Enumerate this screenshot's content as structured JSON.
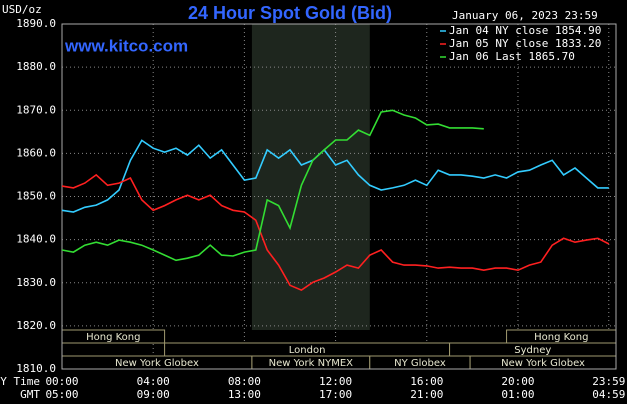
{
  "chart_data": {
    "type": "line",
    "title": "24 Hour Spot Gold (Bid)",
    "subtitle": "www.kitco.com",
    "timestamp": "January 06, 2023 23:59",
    "y_label": "USD/oz",
    "x_label": "NY Time",
    "x2_label": "GMT",
    "xlim": [
      0,
      24.3
    ],
    "ylim": [
      1810,
      1890
    ],
    "yticks": [
      {
        "value": 1810,
        "label": "1810.0"
      },
      {
        "value": 1820,
        "label": "1820.0"
      },
      {
        "value": 1830,
        "label": "1830.0"
      },
      {
        "value": 1840,
        "label": "1840.0"
      },
      {
        "value": 1850,
        "label": "1850.0"
      },
      {
        "value": 1860,
        "label": "1860.0"
      },
      {
        "value": 1870,
        "label": "1870.0"
      },
      {
        "value": 1880,
        "label": "1880.0"
      },
      {
        "value": 1890,
        "label": "1890.0"
      }
    ],
    "xticks": [
      {
        "value": 0,
        "label": "00:00"
      },
      {
        "value": 4,
        "label": "04:00"
      },
      {
        "value": 8,
        "label": "08:00"
      },
      {
        "value": 12,
        "label": "12:00"
      },
      {
        "value": 16,
        "label": "16:00"
      },
      {
        "value": 20,
        "label": "20:00"
      },
      {
        "value": 23.983,
        "label": "23:59"
      }
    ],
    "x2ticks": [
      {
        "value": 0,
        "label": "05:00"
      },
      {
        "value": 4,
        "label": "09:00"
      },
      {
        "value": 8,
        "label": "13:00"
      },
      {
        "value": 12,
        "label": "17:00"
      },
      {
        "value": 16,
        "label": "21:00"
      },
      {
        "value": 20,
        "label": "01:00"
      },
      {
        "value": 23.983,
        "label": "04:59"
      }
    ],
    "grid": true,
    "shaded_range": [
      8.33,
      13.5
    ],
    "sessions": [
      [
        {
          "label": "Hong Kong",
          "start": 0,
          "end": 4.5
        },
        {
          "label": "Hong Kong",
          "start": 19.5,
          "end": 24.3
        }
      ],
      [
        {
          "label": "London",
          "start": 4.5,
          "end": 17
        },
        {
          "label": "Sydney",
          "start": 17,
          "end": 24.3
        }
      ],
      [
        {
          "label": "New York Globex",
          "start": 0,
          "end": 8.33
        },
        {
          "label": "New York NYMEX",
          "start": 8.33,
          "end": 13.5
        },
        {
          "label": "NY Globex",
          "start": 13.5,
          "end": 17.9
        },
        {
          "label": "New York Globex",
          "start": 17.9,
          "end": 24.3
        }
      ]
    ],
    "x": [
      0,
      0.5,
      1,
      1.5,
      2,
      2.5,
      3,
      3.5,
      4,
      4.5,
      5,
      5.5,
      6,
      6.5,
      7,
      7.5,
      8,
      8.5,
      9,
      9.5,
      10,
      10.5,
      11,
      11.5,
      12,
      12.5,
      13,
      13.5,
      14,
      14.5,
      15,
      15.5,
      16,
      16.5,
      17,
      17.5,
      18,
      18.5,
      19,
      19.5,
      20,
      20.5,
      21,
      21.5,
      22,
      22.5,
      23,
      23.5,
      23.983
    ],
    "series": [
      {
        "name": "Jan 04 NY close 1854.90",
        "color": "#33ccff",
        "values": [
          1846.8,
          1846.4,
          1847.5,
          1848,
          1849.2,
          1851.5,
          1858.4,
          1863,
          1861.2,
          1860.3,
          1861.2,
          1859.6,
          1861.9,
          1858.9,
          1860.8,
          1857.3,
          1853.8,
          1854.3,
          1860.8,
          1858.9,
          1860.8,
          1857.3,
          1858.4,
          1860.8,
          1857.3,
          1858.4,
          1855,
          1852.6,
          1851.5,
          1852,
          1852.6,
          1853.8,
          1852.6,
          1856.1,
          1855,
          1855,
          1854.7,
          1854.3,
          1855,
          1854.3,
          1855.7,
          1856.1,
          1857.3,
          1858.4,
          1855,
          1856.6,
          1854.3,
          1852,
          1852
        ]
      },
      {
        "name": "Jan 05 NY close 1833.20",
        "color": "#ff2020",
        "values": [
          1852.4,
          1852,
          1853.1,
          1855,
          1852.6,
          1853.1,
          1854.3,
          1849.2,
          1846.8,
          1847.9,
          1849.2,
          1850.3,
          1849.2,
          1850.3,
          1847.9,
          1846.8,
          1846.4,
          1844.5,
          1837.6,
          1834.1,
          1829.4,
          1828.3,
          1830.1,
          1831.1,
          1832.5,
          1834.1,
          1833.4,
          1836.4,
          1837.6,
          1834.8,
          1834.1,
          1834.1,
          1833.9,
          1833.4,
          1833.6,
          1833.4,
          1833.4,
          1832.9,
          1833.4,
          1833.4,
          1832.9,
          1834.1,
          1834.8,
          1838.7,
          1840.3,
          1839.4,
          1839.9,
          1840.3,
          1839
        ]
      },
      {
        "name": "Jan 06 Last 1865.70",
        "color": "#33dd33",
        "values": [
          1837.6,
          1837.1,
          1838.7,
          1839.4,
          1838.7,
          1839.9,
          1839.4,
          1838.7,
          1837.6,
          1836.4,
          1835.2,
          1835.7,
          1836.4,
          1838.7,
          1836.4,
          1836.2,
          1837.1,
          1837.6,
          1849.2,
          1847.9,
          1842.7,
          1852.6,
          1858.4,
          1860.8,
          1863.1,
          1863.1,
          1865.4,
          1864.2,
          1869.6,
          1870,
          1868.9,
          1868.2,
          1866.6,
          1866.8,
          1865.9,
          1865.9,
          1865.9,
          1865.7,
          null,
          null,
          null,
          null,
          null,
          null,
          null,
          null,
          null,
          null,
          null
        ]
      }
    ]
  }
}
